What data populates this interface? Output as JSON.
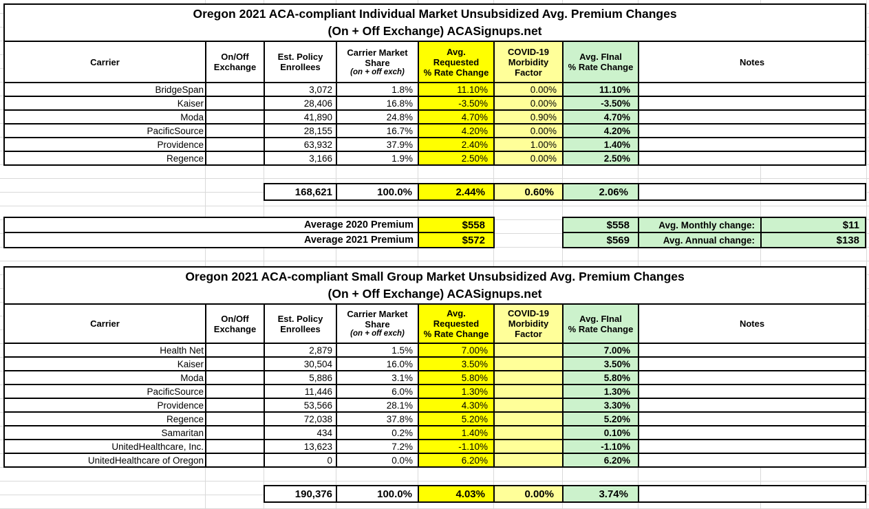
{
  "colors": {
    "cell_yellow": "#FFFF00",
    "cell_pale_yellow": "#FFFF99",
    "cell_green": "#CCF2CC",
    "border": "#000000",
    "gridline": "#D9D9D9"
  },
  "headers": {
    "carrier": "Carrier",
    "exchange": "On/Off\nExchange",
    "enrollees": "Est. Policy\nEnrollees",
    "share": "Carrier Market\nShare",
    "share_sub": "(on + off exch)",
    "requested": "Avg.\nRequested\n% Rate Change",
    "covid": "COVID-19\nMorbidity\nFactor",
    "final": "Avg. FInal\n% Rate Change",
    "notes": "Notes"
  },
  "table1": {
    "title_line1": "Oregon 2021 ACA-compliant Individual Market Unsubsidized Avg. Premium Changes",
    "title_line2": "(On + Off Exchange) ACASignups.net",
    "rows": [
      {
        "carrier": "BridgeSpan",
        "exchange": "",
        "enrollees": "3,072",
        "share": "1.8%",
        "requested": "11.10%",
        "covid": "0.00%",
        "final": "11.10%",
        "notes": ""
      },
      {
        "carrier": "Kaiser",
        "exchange": "",
        "enrollees": "28,406",
        "share": "16.8%",
        "requested": "-3.50%",
        "covid": "0.00%",
        "final": "-3.50%",
        "notes": ""
      },
      {
        "carrier": "Moda",
        "exchange": "",
        "enrollees": "41,890",
        "share": "24.8%",
        "requested": "4.70%",
        "covid": "0.90%",
        "final": "4.70%",
        "notes": ""
      },
      {
        "carrier": "PacificSource",
        "exchange": "",
        "enrollees": "28,155",
        "share": "16.7%",
        "requested": "4.20%",
        "covid": "0.00%",
        "final": "4.20%",
        "notes": ""
      },
      {
        "carrier": "Providence",
        "exchange": "",
        "enrollees": "63,932",
        "share": "37.9%",
        "requested": "2.40%",
        "covid": "1.00%",
        "final": "1.40%",
        "notes": ""
      },
      {
        "carrier": "Regence",
        "exchange": "",
        "enrollees": "3,166",
        "share": "1.9%",
        "requested": "2.50%",
        "covid": "0.00%",
        "final": "2.50%",
        "notes": ""
      }
    ],
    "totals": {
      "enrollees": "168,621",
      "share": "100.0%",
      "requested": "2.44%",
      "covid": "0.60%",
      "final": "2.06%",
      "notes": ""
    },
    "avg_rows": [
      {
        "label": "Average 2020 Premium",
        "requested_value": "$558",
        "final_value": "$558",
        "change_label": "Avg. Monthly change:",
        "change_value": "$11"
      },
      {
        "label": "Average 2021 Premium",
        "requested_value": "$572",
        "final_value": "$569",
        "change_label": "Avg. Annual change:",
        "change_value": "$138"
      }
    ]
  },
  "table2": {
    "title_line1": "Oregon 2021 ACA-compliant Small Group Market Unsubsidized Avg. Premium Changes",
    "title_line2": "(On + Off Exchange) ACASignups.net",
    "rows": [
      {
        "carrier": "Health Net",
        "exchange": "",
        "enrollees": "2,879",
        "share": "1.5%",
        "requested": "7.00%",
        "covid": "",
        "final": "7.00%",
        "notes": ""
      },
      {
        "carrier": "Kaiser",
        "exchange": "",
        "enrollees": "30,504",
        "share": "16.0%",
        "requested": "3.50%",
        "covid": "",
        "final": "3.50%",
        "notes": ""
      },
      {
        "carrier": "Moda",
        "exchange": "",
        "enrollees": "5,886",
        "share": "3.1%",
        "requested": "5.80%",
        "covid": "",
        "final": "5.80%",
        "notes": ""
      },
      {
        "carrier": "PacificSource",
        "exchange": "",
        "enrollees": "11,446",
        "share": "6.0%",
        "requested": "1.30%",
        "covid": "",
        "final": "1.30%",
        "notes": ""
      },
      {
        "carrier": "Providence",
        "exchange": "",
        "enrollees": "53,566",
        "share": "28.1%",
        "requested": "4.30%",
        "covid": "",
        "final": "3.30%",
        "notes": ""
      },
      {
        "carrier": "Regence",
        "exchange": "",
        "enrollees": "72,038",
        "share": "37.8%",
        "requested": "5.20%",
        "covid": "",
        "final": "5.20%",
        "notes": ""
      },
      {
        "carrier": "Samaritan",
        "exchange": "",
        "enrollees": "434",
        "share": "0.2%",
        "requested": "1.40%",
        "covid": "",
        "final": "0.10%",
        "notes": ""
      },
      {
        "carrier": "UnitedHealthcare, Inc.",
        "exchange": "",
        "enrollees": "13,623",
        "share": "7.2%",
        "requested": "-1.10%",
        "covid": "",
        "final": "-1.10%",
        "notes": ""
      },
      {
        "carrier": "UnitedHealthcare of Oregon",
        "exchange": "",
        "enrollees": "0",
        "share": "0.0%",
        "requested": "6.20%",
        "covid": "",
        "final": "6.20%",
        "notes": ""
      }
    ],
    "totals": {
      "enrollees": "190,376",
      "share": "100.0%",
      "requested": "4.03%",
      "covid": "0.00%",
      "final": "3.74%",
      "notes": ""
    }
  }
}
